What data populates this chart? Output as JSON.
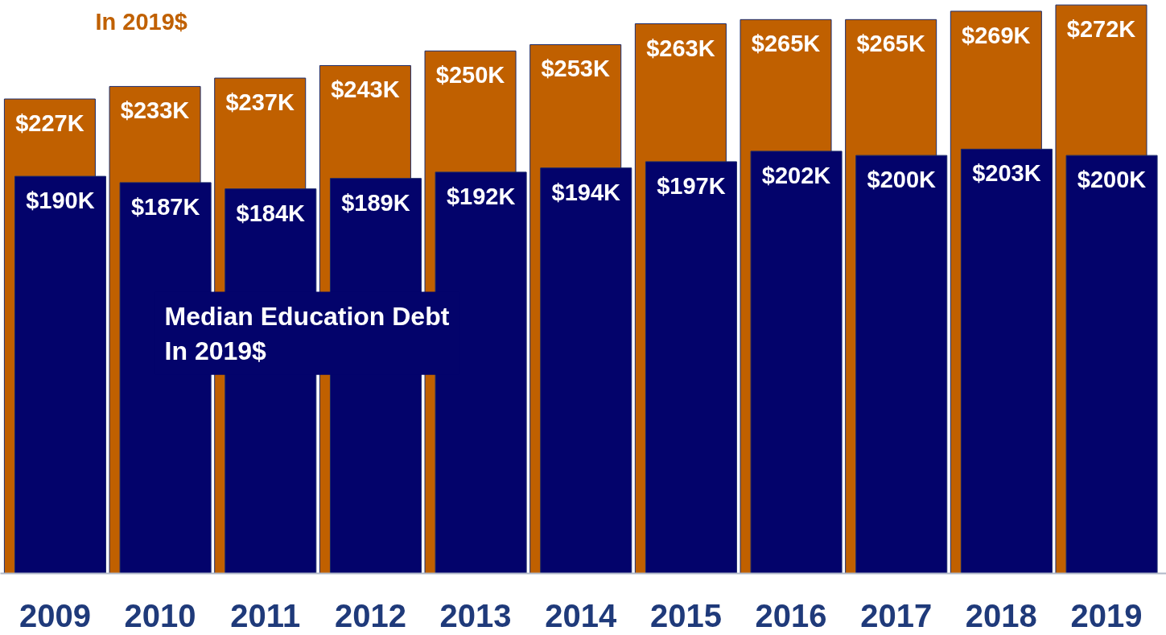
{
  "chart_data": {
    "type": "bar",
    "categories": [
      "2009",
      "2010",
      "2011",
      "2012",
      "2013",
      "2014",
      "2015",
      "2016",
      "2017",
      "2018",
      "2019"
    ],
    "series": [
      {
        "name": "In 2019$",
        "color": "#c06000",
        "values": [
          227,
          233,
          237,
          243,
          250,
          253,
          263,
          265,
          265,
          269,
          272
        ],
        "value_labels": [
          "$227K",
          "$233K",
          "$237K",
          "$243K",
          "$250K",
          "$253K",
          "$263K",
          "$265K",
          "$265K",
          "$269K",
          "$272K"
        ]
      },
      {
        "name": "Median Education Debt\nIn 2019$",
        "color": "#03036b",
        "values": [
          190,
          187,
          184,
          189,
          192,
          194,
          197,
          202,
          200,
          203,
          200
        ],
        "value_labels": [
          "$190K",
          "$187K",
          "$184K",
          "$189K",
          "$192K",
          "$194K",
          "$197K",
          "$202K",
          "$200K",
          "$203K",
          "$200K"
        ]
      }
    ],
    "grid": false
  }
}
